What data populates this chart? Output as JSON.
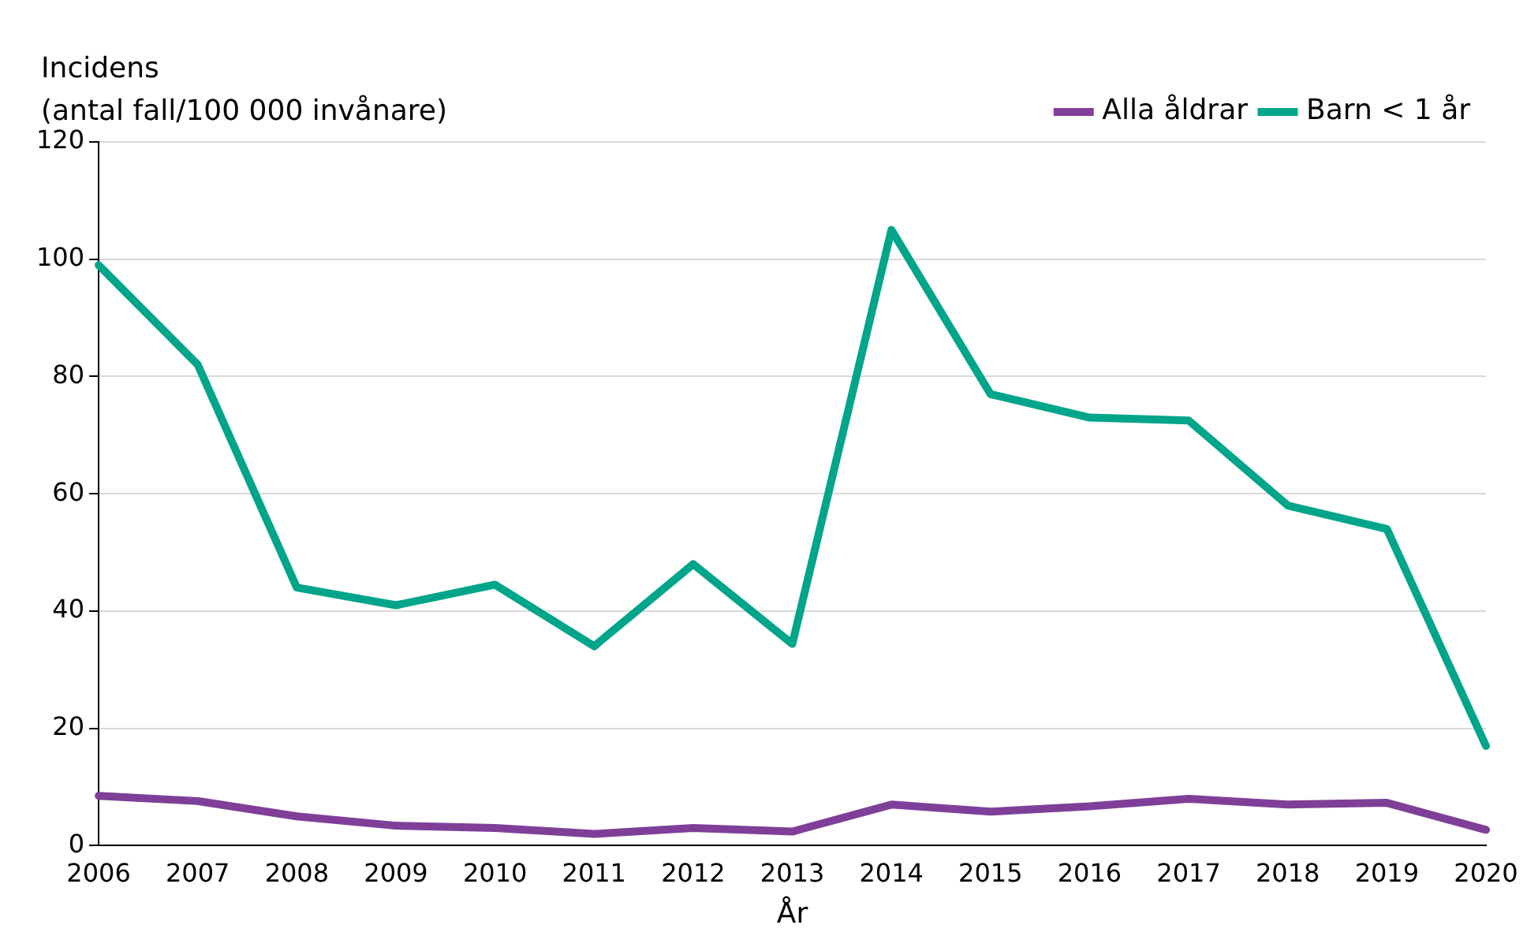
{
  "chart_data": {
    "type": "line",
    "ylabel": "Incidens\n(antal fall/100 000 invånare)",
    "xlabel": "År",
    "categories": [
      "2006",
      "2007",
      "2008",
      "2009",
      "2010",
      "2011",
      "2012",
      "2013",
      "2014",
      "2015",
      "2016",
      "2017",
      "2018",
      "2019",
      "2020"
    ],
    "series": [
      {
        "name": "Alla åldrar",
        "color": "#7f3f98",
        "values": [
          8.5,
          7.6,
          5,
          3.4,
          3,
          2,
          3,
          2.4,
          7,
          5.8,
          6.7,
          8,
          7,
          7.3,
          2.7
        ]
      },
      {
        "name": "Barn < 1 år",
        "color": "#00a58a",
        "values": [
          99,
          82,
          44,
          41,
          44.5,
          34,
          48,
          34.4,
          105,
          77,
          73,
          72.5,
          58,
          54,
          17
        ]
      }
    ],
    "ylim": [
      0,
      120
    ],
    "yticks": [
      0,
      20,
      40,
      60,
      80,
      100,
      120
    ],
    "grid": "y",
    "legend": "top right",
    "marker": "none",
    "line_style": "solid"
  }
}
